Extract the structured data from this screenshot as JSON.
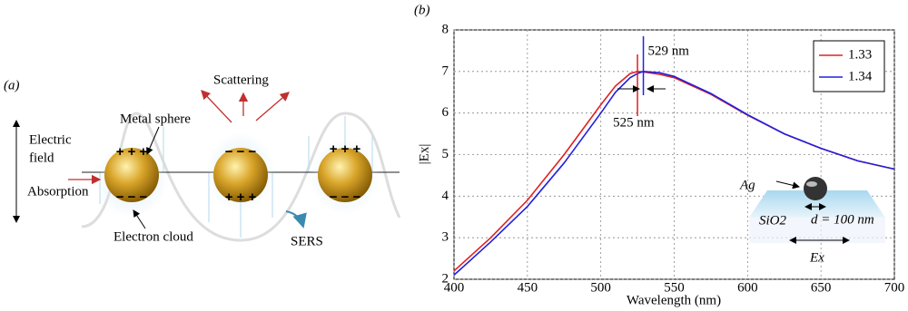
{
  "diagram": {
    "label": "(a)",
    "scattering": "Scattering",
    "metal_sphere": "Metal sphere",
    "electric": "Electric",
    "field": "field",
    "absorption": "Absorption",
    "electron_cloud": "Electron cloud",
    "sers": "SERS",
    "plus": "+ + +",
    "minus": "− − −"
  },
  "chart_data": {
    "type": "line",
    "title": "(b)",
    "xlabel": "Wavelength (nm)",
    "ylabel": "|Ex|",
    "x": [
      400,
      425,
      450,
      475,
      500,
      510,
      520,
      525,
      529,
      540,
      550,
      575,
      600,
      625,
      650,
      675,
      700
    ],
    "series": [
      {
        "name": "1.33",
        "color": "#e02020",
        "values": [
          2.2,
          3.0,
          3.9,
          5.0,
          6.2,
          6.65,
          6.95,
          7.0,
          6.99,
          6.93,
          6.85,
          6.45,
          5.95,
          5.5,
          5.15,
          4.85,
          4.65
        ]
      },
      {
        "name": "1.34",
        "color": "#2020e0",
        "values": [
          2.1,
          2.9,
          3.75,
          4.8,
          6.0,
          6.5,
          6.85,
          6.95,
          7.0,
          6.97,
          6.88,
          6.47,
          5.96,
          5.5,
          5.15,
          4.85,
          4.65
        ]
      }
    ],
    "xlim": [
      400,
      700
    ],
    "xticks": [
      400,
      450,
      500,
      550,
      600,
      650,
      700
    ],
    "ylim": [
      2,
      8
    ],
    "yticks": [
      2,
      3,
      4,
      5,
      6,
      7,
      8
    ],
    "grid": true,
    "legend": "upper right",
    "peak_markers": [
      {
        "value": 525,
        "label": "525 nm",
        "color": "#e02020"
      },
      {
        "value": 529,
        "label": "529 nm",
        "color": "#2020e0"
      }
    ],
    "inset": {
      "metal": "Ag",
      "substrate": "SiO2",
      "diameter": "d = 100 nm",
      "field": "Ex"
    }
  }
}
